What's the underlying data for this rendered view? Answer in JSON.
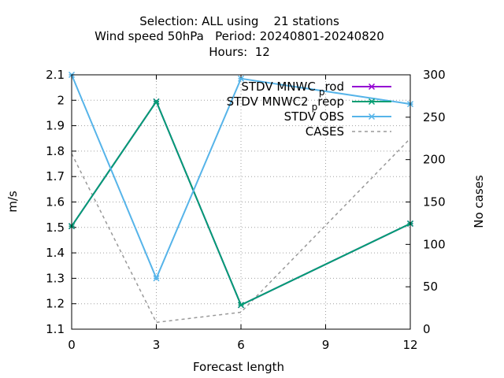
{
  "chart_data": {
    "type": "line",
    "title_lines": [
      "Selection: ALL using    21 stations",
      "Wind speed 50hPa   Period: 20240801-20240820",
      "Hours:  12"
    ],
    "xlabel": "Forecast length",
    "ylabel": "m/s",
    "y2label": "No cases",
    "x_ticks": [
      0,
      3,
      6,
      9,
      12
    ],
    "xlim": [
      0,
      12
    ],
    "y_ticks": [
      1.1,
      1.2,
      1.3,
      1.4,
      1.5,
      1.6,
      1.7,
      1.8,
      1.9,
      2,
      2.1
    ],
    "y_tick_labels": [
      "1.1",
      "1.2",
      "1.3",
      "1.4",
      "1.5",
      "1.6",
      "1.7",
      "1.8",
      "1.9",
      "2",
      "2.1"
    ],
    "ylim": [
      1.1,
      2.1
    ],
    "y2_ticks": [
      0,
      50,
      100,
      150,
      200,
      250,
      300
    ],
    "y2lim": [
      0,
      300
    ],
    "grid": true,
    "legend_position": "top-right",
    "series": [
      {
        "name": "STDV MNWC prod",
        "legend_main": "STDV MNWC",
        "legend_sub": "p",
        "legend_after": "rod",
        "axis": "y",
        "color": "#9400d3",
        "dash": false,
        "marker": "x",
        "x": [
          0,
          3,
          6,
          12
        ],
        "values": [
          1.505,
          1.995,
          1.195,
          1.515
        ]
      },
      {
        "name": "STDV MNWC2 preop",
        "legend_main": "STDV MNWC2",
        "legend_sub": "p",
        "legend_after": "reop",
        "axis": "y",
        "color": "#009e73",
        "dash": false,
        "marker": "x",
        "x": [
          0,
          3,
          6,
          12
        ],
        "values": [
          1.505,
          1.995,
          1.195,
          1.515
        ]
      },
      {
        "name": "STDV OBS",
        "legend_main": "STDV OBS",
        "legend_sub": "",
        "legend_after": "",
        "axis": "y",
        "color": "#56b4e9",
        "dash": false,
        "marker": "x",
        "x": [
          0,
          3,
          6,
          12
        ],
        "values": [
          2.1,
          1.3,
          2.085,
          1.985
        ]
      },
      {
        "name": "CASES",
        "legend_main": "CASES",
        "legend_sub": "",
        "legend_after": "",
        "axis": "y2",
        "color": "#999999",
        "dash": true,
        "marker": "none",
        "x": [
          0,
          3,
          6,
          12
        ],
        "values": [
          207,
          8,
          20,
          225
        ]
      }
    ]
  }
}
